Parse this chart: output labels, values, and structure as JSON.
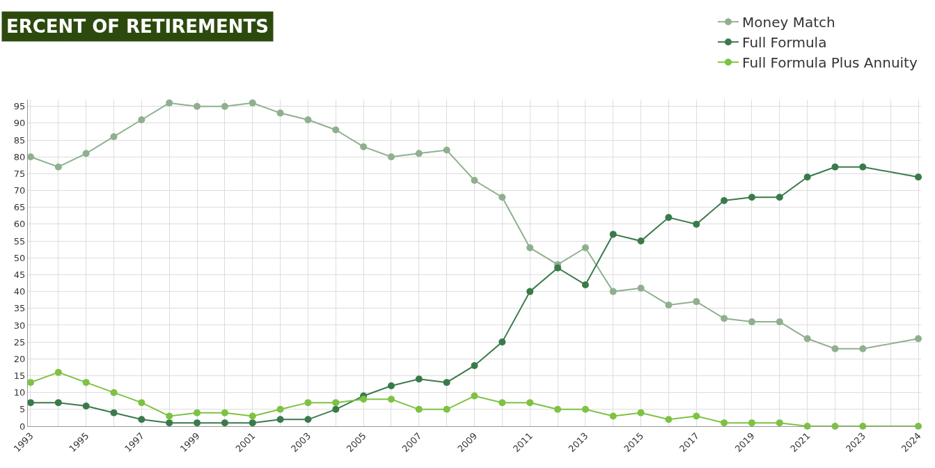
{
  "chart_data": {
    "type": "line",
    "title": "ERCENT OF RETIREMENTS",
    "categories": [
      "1993",
      null,
      "1995",
      null,
      "1997",
      null,
      "1999",
      null,
      "2001",
      null,
      "2003",
      null,
      "2005",
      null,
      "2007",
      null,
      "2009",
      null,
      "2011",
      null,
      "2013",
      null,
      "2015",
      null,
      "2017",
      null,
      "2019",
      null,
      "2021",
      null,
      "2023",
      null,
      "2024"
    ],
    "series": [
      {
        "name": "Money Match",
        "color": "#8fb08f",
        "values": [
          80,
          77,
          81,
          86,
          91,
          96,
          95,
          95,
          96,
          93,
          91,
          88,
          83,
          80,
          81,
          82,
          73,
          68,
          53,
          48,
          53,
          40,
          41,
          36,
          37,
          32,
          31,
          31,
          26,
          23,
          23,
          null,
          26
        ]
      },
      {
        "name": "Full Formula",
        "color": "#3a7a4a",
        "values": [
          7,
          7,
          6,
          4,
          2,
          1,
          1,
          1,
          1,
          2,
          2,
          5,
          9,
          12,
          14,
          13,
          18,
          25,
          40,
          47,
          42,
          57,
          55,
          62,
          60,
          67,
          68,
          68,
          74,
          77,
          77,
          null,
          74
        ]
      },
      {
        "name": "Full Formula Plus Annuity",
        "color": "#7dc242",
        "values": [
          13,
          16,
          13,
          10,
          7,
          3,
          4,
          4,
          3,
          5,
          7,
          7,
          8,
          8,
          5,
          5,
          9,
          7,
          7,
          5,
          5,
          3,
          4,
          2,
          3,
          1,
          1,
          1,
          0,
          0,
          0,
          null,
          0
        ]
      }
    ],
    "ylim": [
      0,
      97
    ],
    "yticks": [
      0,
      5,
      10,
      15,
      20,
      25,
      30,
      35,
      40,
      45,
      50,
      55,
      60,
      65,
      70,
      75,
      80,
      85,
      90,
      95
    ],
    "grid": true,
    "legend": "top right",
    "marker": "circle",
    "line_style": "solid"
  }
}
